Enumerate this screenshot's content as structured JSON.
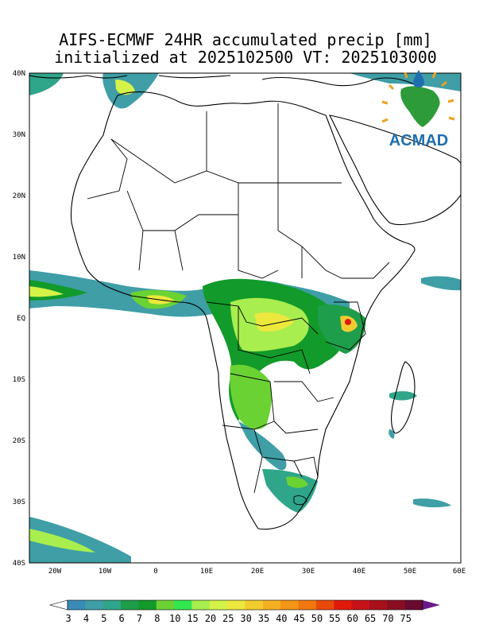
{
  "title": {
    "line1": "AIFS-ECMWF 24HR accumulated precip [mm]",
    "line2": "initialized at 2025102500 VT: 2025103000"
  },
  "logo": {
    "text": "ACMAD",
    "icon": "africa-sun-raindrop-logo",
    "colors": {
      "text": "#1f6fb0",
      "continent": "#2e9b3a",
      "rays": "#f0a020"
    }
  },
  "axes": {
    "lon_ticks": [
      "20W",
      "10W",
      "0",
      "10E",
      "20E",
      "30E",
      "40E",
      "50E",
      "60E"
    ],
    "lat_ticks": [
      "40N",
      "30N",
      "20N",
      "10N",
      "EQ",
      "10S",
      "20S",
      "30S",
      "40S"
    ],
    "lon_range": [
      -25,
      60
    ],
    "lat_range": [
      -40,
      40
    ]
  },
  "colorbar": {
    "labels": [
      "3",
      "4",
      "5",
      "6",
      "7",
      "8",
      "10",
      "15",
      "20",
      "25",
      "30",
      "35",
      "40",
      "45",
      "50",
      "55",
      "60",
      "65",
      "70",
      "75"
    ],
    "colors": [
      "#3a8cb8",
      "#3f9ea6",
      "#2fa58a",
      "#1e9d4a",
      "#129a2a",
      "#6bd233",
      "#33e84f",
      "#a8ee4f",
      "#d4f248",
      "#ece83e",
      "#f2cc2e",
      "#f4b021",
      "#f49516",
      "#f0780e",
      "#ea4a08",
      "#e01a0a",
      "#c8121a",
      "#a8101a",
      "#8a0e22",
      "#6a0a30"
    ],
    "low_end_color": "#ffffff",
    "high_end_color": "#6a1a8a"
  }
}
